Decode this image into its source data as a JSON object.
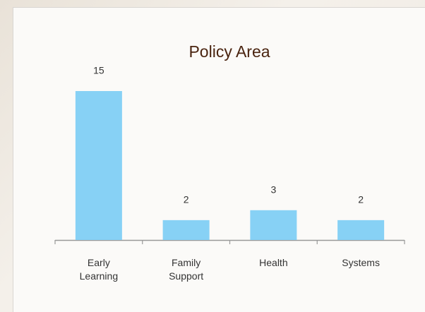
{
  "chart_data": {
    "type": "bar",
    "title": "Policy Area",
    "categories": [
      "Early Learning",
      "Family Support",
      "Health",
      "Systems"
    ],
    "values": [
      15,
      2,
      3,
      2
    ],
    "color": "#87d1f5"
  }
}
